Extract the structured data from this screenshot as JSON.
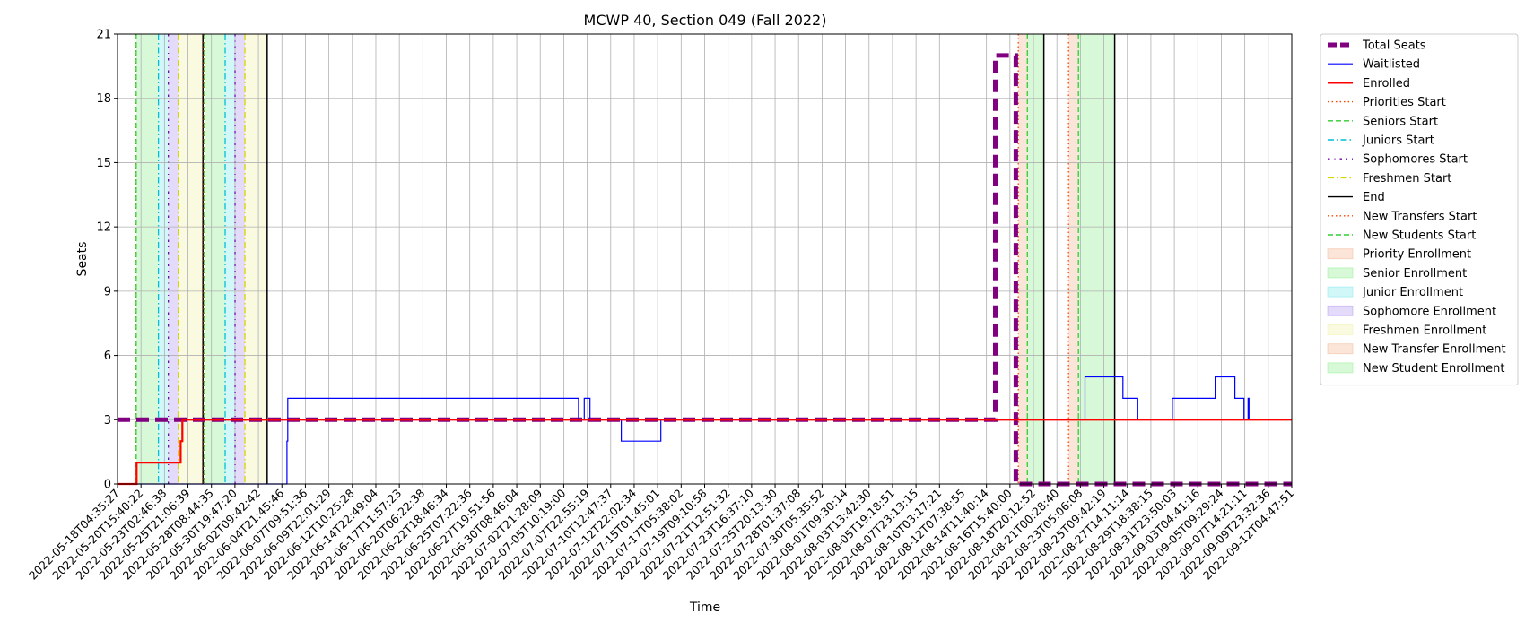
{
  "chart_data": {
    "type": "line",
    "title": "MCWP 40, Section 049 (Fall 2022)",
    "xlabel": "Time",
    "ylabel": "Seats",
    "xlim": [
      "2022-05-18T04:35:27",
      "2022-09-14T00:00:00"
    ],
    "ylim": [
      0,
      21
    ],
    "yticks": [
      0,
      3,
      6,
      9,
      12,
      15,
      18,
      21
    ],
    "grid": true,
    "legend_position": "right, outside plot",
    "xtick_labels": [
      "2022-05-18T04:35:27",
      "2022-05-20T15:40:22",
      "2022-05-23T02:46:38",
      "2022-05-25T21:06:39",
      "2022-05-28T08:44:35",
      "2022-05-30T19:47:20",
      "2022-06-02T09:42:42",
      "2022-06-04T21:45:46",
      "2022-06-07T09:51:36",
      "2022-06-09T22:01:29",
      "2022-06-12T10:25:28",
      "2022-06-14T22:49:04",
      "2022-06-17T11:57:23",
      "2022-06-20T06:22:38",
      "2022-06-22T18:46:34",
      "2022-06-25T07:22:36",
      "2022-06-27T19:51:56",
      "2022-06-30T08:46:04",
      "2022-07-02T21:28:09",
      "2022-07-05T10:19:00",
      "2022-07-07T22:55:19",
      "2022-07-10T12:47:37",
      "2022-07-12T22:02:34",
      "2022-07-15T01:45:01",
      "2022-07-17T05:38:02",
      "2022-07-19T09:10:58",
      "2022-07-21T12:51:32",
      "2022-07-23T16:37:10",
      "2022-07-25T20:13:30",
      "2022-07-28T01:37:08",
      "2022-07-30T05:35:52",
      "2022-08-01T09:30:14",
      "2022-08-03T13:42:30",
      "2022-08-05T19:18:51",
      "2022-08-07T23:13:15",
      "2022-08-10T03:17:21",
      "2022-08-12T07:38:55",
      "2022-08-14T11:40:14",
      "2022-08-16T15:40:00",
      "2022-08-18T20:12:52",
      "2022-08-21T00:28:40",
      "2022-08-23T05:06:08",
      "2022-08-25T09:42:19",
      "2022-08-27T14:11:14",
      "2022-08-29T18:38:15",
      "2022-08-31T23:50:03",
      "2022-09-03T04:41:16",
      "2022-09-05T09:29:24",
      "2022-09-07T14:21:11",
      "2022-09-09T23:32:36",
      "2022-09-12T04:47:51"
    ],
    "series": [
      {
        "name": "Total Seats",
        "color": "#800080",
        "style": "dashed-thick",
        "points": [
          [
            "2022-05-18T04:35:27",
            3
          ],
          [
            "2022-08-15T00:00:00",
            3
          ],
          [
            "2022-08-15T00:00:00",
            20
          ],
          [
            "2022-08-17T02:00:00",
            20
          ],
          [
            "2022-08-17T02:00:00",
            0
          ],
          [
            "2022-09-14T00:00:00",
            0
          ]
        ]
      },
      {
        "name": "Waitlisted",
        "color": "#0000ff",
        "style": "solid-thin",
        "points": [
          [
            "2022-05-18T04:35:27",
            0
          ],
          [
            "2022-06-04T08:00:00",
            0
          ],
          [
            "2022-06-04T08:00:00",
            2
          ],
          [
            "2022-06-04T10:00:00",
            2
          ],
          [
            "2022-06-04T10:00:00",
            4
          ],
          [
            "2022-07-03T20:00:00",
            4
          ],
          [
            "2022-07-03T20:00:00",
            3
          ],
          [
            "2022-07-04T10:00:00",
            3
          ],
          [
            "2022-07-04T10:00:00",
            4
          ],
          [
            "2022-07-05T00:00:00",
            4
          ],
          [
            "2022-07-05T00:00:00",
            3
          ],
          [
            "2022-07-08T04:00:00",
            3
          ],
          [
            "2022-07-08T04:00:00",
            2
          ],
          [
            "2022-07-12T04:00:00",
            2
          ],
          [
            "2022-07-12T04:00:00",
            3
          ],
          [
            "2022-08-24T02:00:00",
            3
          ],
          [
            "2022-08-24T02:00:00",
            5
          ],
          [
            "2022-08-27T22:00:00",
            5
          ],
          [
            "2022-08-27T22:00:00",
            4
          ],
          [
            "2022-08-29T10:00:00",
            4
          ],
          [
            "2022-08-29T10:00:00",
            3
          ],
          [
            "2022-09-01T22:00:00",
            3
          ],
          [
            "2022-09-01T22:00:00",
            4
          ],
          [
            "2022-09-06T06:00:00",
            4
          ],
          [
            "2022-09-06T06:00:00",
            5
          ],
          [
            "2022-09-08T06:00:00",
            5
          ],
          [
            "2022-09-08T06:00:00",
            4
          ],
          [
            "2022-09-09T04:00:00",
            4
          ],
          [
            "2022-09-09T04:00:00",
            3
          ],
          [
            "2022-09-09T14:00:00",
            3
          ],
          [
            "2022-09-09T14:00:00",
            4
          ],
          [
            "2022-09-09T16:00:00",
            4
          ],
          [
            "2022-09-09T16:00:00",
            3
          ],
          [
            "2022-09-14T00:00:00",
            3
          ]
        ]
      },
      {
        "name": "Enrolled",
        "color": "#ff0000",
        "style": "solid-thick",
        "points": [
          [
            "2022-05-18T04:35:27",
            0
          ],
          [
            "2022-05-20T03:00:00",
            0
          ],
          [
            "2022-05-20T03:00:00",
            1
          ],
          [
            "2022-05-24T14:00:00",
            1
          ],
          [
            "2022-05-24T14:00:00",
            2
          ],
          [
            "2022-05-24T18:00:00",
            2
          ],
          [
            "2022-05-24T18:00:00",
            3
          ],
          [
            "2022-09-14T00:00:00",
            3
          ]
        ]
      }
    ],
    "periods": [
      {
        "name": "Senior Enrollment",
        "color": "#90ee90",
        "start": "2022-05-20T02:00:00",
        "end": "2022-05-22T08:00:00"
      },
      {
        "name": "Junior Enrollment",
        "color": "#7fe8ec",
        "start": "2022-05-22T08:00:00",
        "end": "2022-05-23T08:00:00"
      },
      {
        "name": "Sophomore Enrollment",
        "color": "#b394ee",
        "start": "2022-05-23T08:00:00",
        "end": "2022-05-24T08:00:00"
      },
      {
        "name": "Freshmen Enrollment",
        "color": "#f2f2a8",
        "start": "2022-05-24T08:00:00",
        "end": "2022-05-26T20:00:00"
      },
      {
        "name": "Senior Enrollment",
        "color": "#90ee90",
        "start": "2022-05-27T00:00:00",
        "end": "2022-05-29T02:00:00"
      },
      {
        "name": "Junior Enrollment",
        "color": "#7fe8ec",
        "start": "2022-05-29T02:00:00",
        "end": "2022-05-30T02:00:00"
      },
      {
        "name": "Sophomore Enrollment",
        "color": "#b394ee",
        "start": "2022-05-30T02:00:00",
        "end": "2022-05-31T02:00:00"
      },
      {
        "name": "Freshmen Enrollment",
        "color": "#f2f2a8",
        "start": "2022-05-31T02:00:00",
        "end": "2022-06-02T08:00:00"
      },
      {
        "name": "Priority Enrollment",
        "color": "#f4b493",
        "start": "2022-08-17T08:00:00",
        "end": "2022-08-18T06:00:00"
      },
      {
        "name": "Senior Enrollment",
        "color": "#90ee90",
        "start": "2022-08-18T06:00:00",
        "end": "2022-08-19T22:00:00"
      },
      {
        "name": "New Transfer Enrollment",
        "color": "#f4b493",
        "start": "2022-08-22T10:00:00",
        "end": "2022-08-23T10:00:00"
      },
      {
        "name": "New Student Enrollment",
        "color": "#90ee90",
        "start": "2022-08-23T10:00:00",
        "end": "2022-08-27T02:00:00"
      }
    ],
    "markers": [
      {
        "name": "Priorities Start",
        "color": "#ff4500",
        "style": "dotted",
        "at": "2022-05-20T00:00:00"
      },
      {
        "name": "Seniors Start",
        "color": "#32cd32",
        "style": "dashed",
        "at": "2022-05-20T02:00:00"
      },
      {
        "name": "Juniors Start",
        "color": "#00bfd8",
        "style": "dashdot",
        "at": "2022-05-22T08:00:00"
      },
      {
        "name": "Sophomores Start",
        "color": "#6a0dad",
        "style": "dashdot2",
        "at": "2022-05-23T08:00:00"
      },
      {
        "name": "Freshmen Start",
        "color": "#d6d600",
        "style": "dashdot",
        "at": "2022-05-24T08:00:00"
      },
      {
        "name": "End",
        "color": "#000000",
        "style": "solid",
        "at": "2022-05-26T20:00:00"
      },
      {
        "name": "Priorities Start",
        "color": "#ff4500",
        "style": "dotted",
        "at": "2022-05-26T22:00:00"
      },
      {
        "name": "Seniors Start",
        "color": "#32cd32",
        "style": "dashed",
        "at": "2022-05-27T00:00:00"
      },
      {
        "name": "Juniors Start",
        "color": "#00bfd8",
        "style": "dashdot",
        "at": "2022-05-29T02:00:00"
      },
      {
        "name": "Sophomores Start",
        "color": "#6a0dad",
        "style": "dashdot2",
        "at": "2022-05-30T02:00:00"
      },
      {
        "name": "Freshmen Start",
        "color": "#d6d600",
        "style": "dashdot",
        "at": "2022-05-31T02:00:00"
      },
      {
        "name": "End",
        "color": "#000000",
        "style": "solid",
        "at": "2022-06-02T08:00:00"
      },
      {
        "name": "Priorities Start",
        "color": "#ff4500",
        "style": "dotted",
        "at": "2022-08-17T08:00:00"
      },
      {
        "name": "Seniors Start",
        "color": "#32cd32",
        "style": "dashed",
        "at": "2022-08-18T06:00:00"
      },
      {
        "name": "End",
        "color": "#000000",
        "style": "solid",
        "at": "2022-08-19T22:00:00"
      },
      {
        "name": "New Transfers Start",
        "color": "#ff4500",
        "style": "dotted",
        "at": "2022-08-22T10:00:00"
      },
      {
        "name": "New Students Start",
        "color": "#32cd32",
        "style": "dashed",
        "at": "2022-08-23T10:00:00"
      },
      {
        "name": "End",
        "color": "#000000",
        "style": "solid",
        "at": "2022-08-27T02:00:00"
      }
    ],
    "legend": [
      {
        "label": "Total Seats",
        "kind": "line",
        "color": "#800080",
        "style": "dashed-thick"
      },
      {
        "label": "Waitlisted",
        "kind": "line",
        "color": "#0000ff",
        "style": "solid-thin"
      },
      {
        "label": "Enrolled",
        "kind": "line",
        "color": "#ff0000",
        "style": "solid-thick"
      },
      {
        "label": "Priorities Start",
        "kind": "line",
        "color": "#ff4500",
        "style": "dotted"
      },
      {
        "label": "Seniors Start",
        "kind": "line",
        "color": "#32cd32",
        "style": "dashed"
      },
      {
        "label": "Juniors Start",
        "kind": "line",
        "color": "#00bfd8",
        "style": "dashdot"
      },
      {
        "label": "Sophomores Start",
        "kind": "line",
        "color": "#6a0dad",
        "style": "dashdot2"
      },
      {
        "label": "Freshmen Start",
        "kind": "line",
        "color": "#d6d600",
        "style": "dashdot"
      },
      {
        "label": "End",
        "kind": "line",
        "color": "#000000",
        "style": "solid"
      },
      {
        "label": "New Transfers Start",
        "kind": "line",
        "color": "#ff4500",
        "style": "dotted"
      },
      {
        "label": "New Students Start",
        "kind": "line",
        "color": "#32cd32",
        "style": "dashed"
      },
      {
        "label": "Priority Enrollment",
        "kind": "patch",
        "color": "#f4b493"
      },
      {
        "label": "Senior Enrollment",
        "kind": "patch",
        "color": "#90ee90"
      },
      {
        "label": "Junior Enrollment",
        "kind": "patch",
        "color": "#7fe8ec"
      },
      {
        "label": "Sophomore Enrollment",
        "kind": "patch",
        "color": "#b394ee"
      },
      {
        "label": "Freshmen Enrollment",
        "kind": "patch",
        "color": "#f2f2a8"
      },
      {
        "label": "New Transfer Enrollment",
        "kind": "patch",
        "color": "#f4b493"
      },
      {
        "label": "New Student Enrollment",
        "kind": "patch",
        "color": "#90ee90"
      }
    ]
  }
}
